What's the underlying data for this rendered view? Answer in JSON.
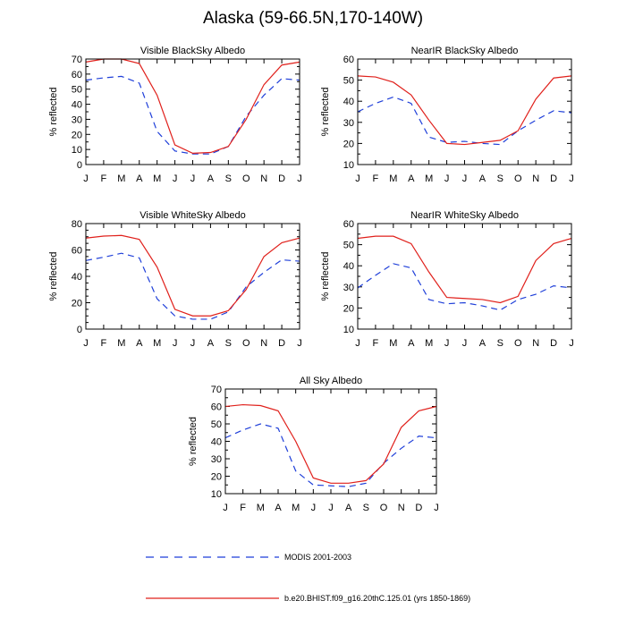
{
  "title": "Alaska (59-66.5N,170-140W)",
  "colors": {
    "modis": "#1f3fd9",
    "model": "#e0201b",
    "axis": "#000000"
  },
  "legend": [
    {
      "name": "MODIS 2001-2003",
      "style": "dashed",
      "color": "#1f3fd9"
    },
    {
      "name": "b.e20.BHIST.f09_g16.20thC.125.01 (yrs 1850-1869)",
      "style": "solid",
      "color": "#e0201b"
    }
  ],
  "chart_data": [
    {
      "type": "line",
      "title": "Visible BlackSky Albedo",
      "ylabel": "% reflected",
      "categories": [
        "J",
        "F",
        "M",
        "A",
        "M",
        "J",
        "J",
        "A",
        "S",
        "O",
        "N",
        "D",
        "J"
      ],
      "ylim": [
        0,
        70
      ],
      "yticks": [
        0,
        10,
        20,
        30,
        40,
        50,
        60,
        70
      ],
      "series": [
        {
          "name": "MODIS 2001-2003",
          "values": [
            56,
            57.5,
            58.5,
            54,
            22,
            9,
            7,
            7,
            12,
            32,
            46,
            57,
            56
          ]
        },
        {
          "name": "b.e20.BHIST.f09_g16.20thC.125.01 (yrs 1850-1869)",
          "values": [
            68,
            70,
            70,
            67,
            46,
            13,
            7.5,
            8,
            12,
            30,
            53,
            66,
            68
          ]
        }
      ]
    },
    {
      "type": "line",
      "title": "NearIR BlackSky Albedo",
      "ylabel": "% reflected",
      "categories": [
        "J",
        "F",
        "M",
        "A",
        "M",
        "J",
        "J",
        "A",
        "S",
        "O",
        "N",
        "D",
        "J"
      ],
      "ylim": [
        10,
        60
      ],
      "yticks": [
        10,
        20,
        30,
        40,
        50,
        60
      ],
      "series": [
        {
          "name": "MODIS 2001-2003",
          "values": [
            35,
            39,
            42,
            39,
            23,
            20.5,
            21,
            20,
            19.5,
            26,
            31,
            35.5,
            34.5
          ]
        },
        {
          "name": "b.e20.BHIST.f09_g16.20thC.125.01 (yrs 1850-1869)",
          "values": [
            52,
            51.5,
            49,
            43,
            31,
            20,
            19.5,
            20.5,
            21.5,
            26,
            41,
            51,
            52
          ]
        }
      ]
    },
    {
      "type": "line",
      "title": "Visible WhiteSky Albedo",
      "ylabel": "% reflected",
      "categories": [
        "J",
        "F",
        "M",
        "A",
        "M",
        "J",
        "J",
        "A",
        "S",
        "O",
        "N",
        "D",
        "J"
      ],
      "ylim": [
        0,
        80
      ],
      "yticks": [
        0,
        20,
        40,
        60,
        80
      ],
      "series": [
        {
          "name": "MODIS 2001-2003",
          "values": [
            52,
            54.5,
            57.5,
            54,
            23,
            10,
            7.5,
            7.5,
            13,
            32,
            43,
            52.5,
            51.5
          ]
        },
        {
          "name": "b.e20.BHIST.f09_g16.20thC.125.01 (yrs 1850-1869)",
          "values": [
            69,
            70.5,
            71,
            68,
            47,
            15,
            10,
            10,
            14,
            30,
            55,
            65.5,
            69
          ]
        }
      ]
    },
    {
      "type": "line",
      "title": "NearIR WhiteSky Albedo",
      "ylabel": "% reflected",
      "categories": [
        "J",
        "F",
        "M",
        "A",
        "M",
        "J",
        "J",
        "A",
        "S",
        "O",
        "N",
        "D",
        "J"
      ],
      "ylim": [
        10,
        60
      ],
      "yticks": [
        10,
        20,
        30,
        40,
        50,
        60
      ],
      "series": [
        {
          "name": "MODIS 2001-2003",
          "values": [
            29.5,
            35.5,
            41,
            39,
            24,
            22,
            22.5,
            21,
            19,
            24,
            26.5,
            30.5,
            29.5
          ]
        },
        {
          "name": "b.e20.BHIST.f09_g16.20thC.125.01 (yrs 1850-1869)",
          "values": [
            53,
            54,
            54,
            50.5,
            37,
            25,
            24.5,
            24,
            22.5,
            25.5,
            42.5,
            50.5,
            53
          ]
        }
      ]
    },
    {
      "type": "line",
      "title": "All Sky Albedo",
      "ylabel": "% reflected",
      "categories": [
        "J",
        "F",
        "M",
        "A",
        "M",
        "J",
        "J",
        "A",
        "S",
        "O",
        "N",
        "D",
        "J"
      ],
      "ylim": [
        10,
        70
      ],
      "yticks": [
        10,
        20,
        30,
        40,
        50,
        60,
        70
      ],
      "series": [
        {
          "name": "MODIS 2001-2003",
          "values": [
            42,
            46.5,
            50,
            47.5,
            23,
            15,
            14.5,
            14,
            16,
            27.5,
            36,
            43,
            42
          ]
        },
        {
          "name": "b.e20.BHIST.f09_g16.20thC.125.01 (yrs 1850-1869)",
          "values": [
            60,
            61,
            60.5,
            57.5,
            40,
            19,
            16,
            16,
            17.5,
            27,
            48,
            57.5,
            60
          ]
        }
      ]
    }
  ]
}
